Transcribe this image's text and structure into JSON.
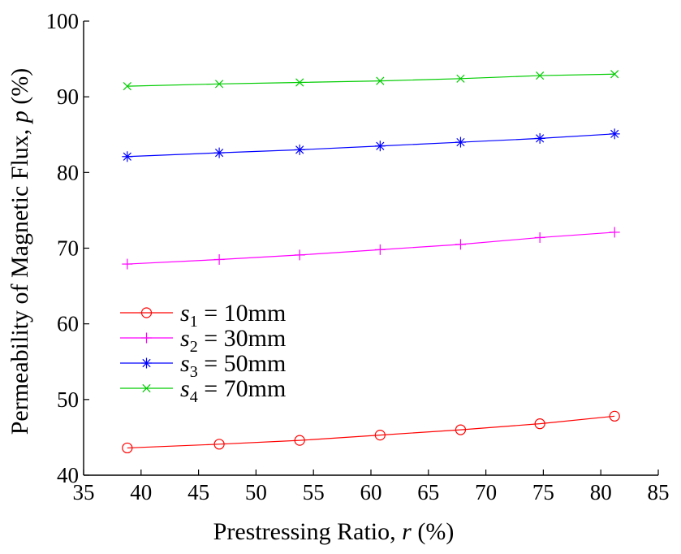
{
  "chart_data": {
    "type": "line",
    "title": "",
    "xlabel": {
      "pre": "Prestressing Ratio, ",
      "var": "r",
      "post": " (%)"
    },
    "ylabel": {
      "pre": "Permeability of Magnetic Flux, ",
      "var": "p",
      "post": " (%)"
    },
    "xlim": [
      35,
      85
    ],
    "ylim": [
      40,
      100
    ],
    "xticks": [
      35,
      40,
      45,
      50,
      55,
      60,
      65,
      70,
      75,
      80,
      85
    ],
    "yticks": [
      40,
      50,
      60,
      70,
      80,
      90,
      100
    ],
    "grid": false,
    "legend_position": "left",
    "x": [
      38.8,
      46.8,
      53.8,
      60.8,
      67.8,
      74.7,
      81.2
    ],
    "series": [
      {
        "label_var": "s",
        "label_sub": "1",
        "label_rest": " = 10mm",
        "color": "#ff0000",
        "marker": "circle",
        "values": [
          43.6,
          44.1,
          44.6,
          45.3,
          46.0,
          46.8,
          47.8
        ]
      },
      {
        "label_var": "s",
        "label_sub": "2",
        "label_rest": " = 30mm",
        "color": "#ff00ff",
        "marker": "plus",
        "values": [
          67.9,
          68.5,
          69.1,
          69.8,
          70.5,
          71.4,
          72.1
        ]
      },
      {
        "label_var": "s",
        "label_sub": "3",
        "label_rest": " = 50mm",
        "color": "#0000ff",
        "marker": "asterisk",
        "values": [
          82.1,
          82.6,
          83.0,
          83.5,
          84.0,
          84.5,
          85.1
        ]
      },
      {
        "label_var": "s",
        "label_sub": "4",
        "label_rest": " = 70mm",
        "color": "#00cc00",
        "marker": "x",
        "values": [
          91.4,
          91.7,
          91.9,
          92.1,
          92.4,
          92.8,
          93.0
        ]
      }
    ]
  }
}
